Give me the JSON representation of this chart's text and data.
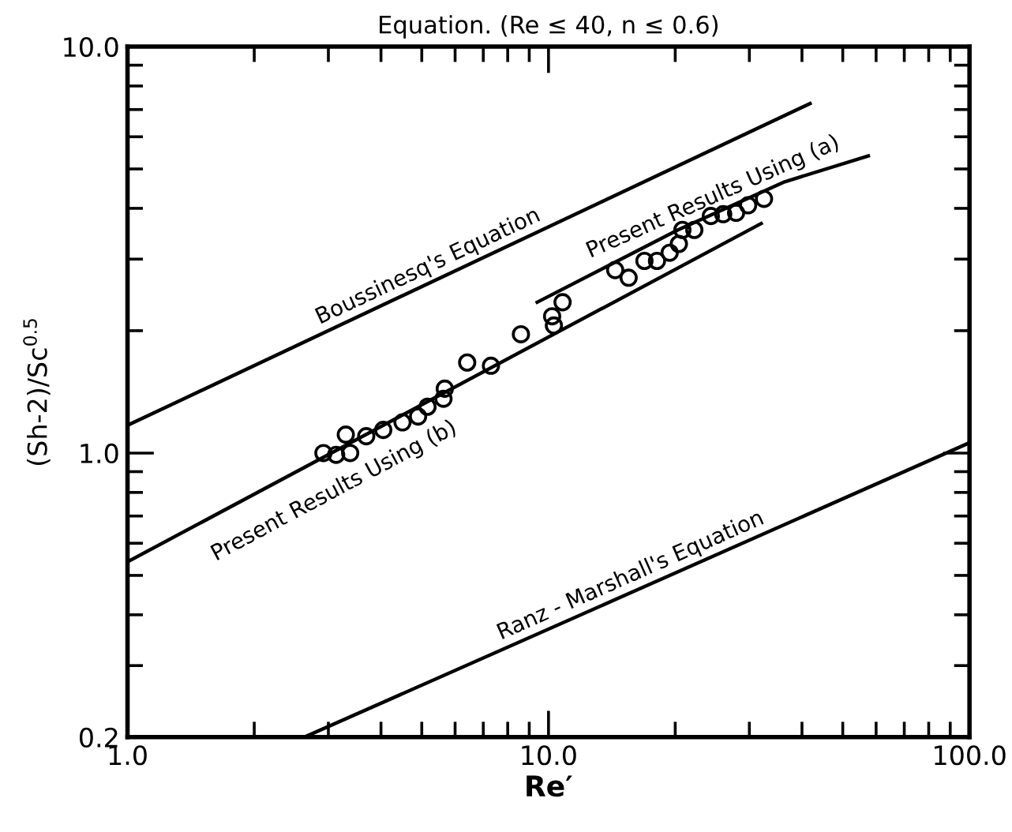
{
  "chart_data": {
    "type": "line",
    "title": "Equation. (Re ≤ 40, n ≤ 0.6)",
    "xlabel": "Re′",
    "ylabel": "(Sh-2)/Sc$^{0.5}$",
    "log": "xy",
    "xlim": [
      1,
      100
    ],
    "ylim": [
      0.2,
      10
    ],
    "xticks": [
      {
        "value": 1,
        "label": "1.0"
      },
      {
        "value": 2,
        "label": null
      },
      {
        "value": 3,
        "label": null
      },
      {
        "value": 4,
        "label": null
      },
      {
        "value": 5,
        "label": null
      },
      {
        "value": 6,
        "label": null
      },
      {
        "value": 7,
        "label": null
      },
      {
        "value": 8,
        "label": null
      },
      {
        "value": 9,
        "label": null
      },
      {
        "value": 10,
        "label": "10.0"
      },
      {
        "value": 20,
        "label": null
      },
      {
        "value": 30,
        "label": null
      },
      {
        "value": 40,
        "label": null
      },
      {
        "value": 50,
        "label": null
      },
      {
        "value": 60,
        "label": null
      },
      {
        "value": 70,
        "label": null
      },
      {
        "value": 80,
        "label": null
      },
      {
        "value": 90,
        "label": null
      },
      {
        "value": 100,
        "label": "100.0"
      }
    ],
    "yticks": [
      {
        "value": 0.2,
        "label": "0.2"
      },
      {
        "value": 0.3,
        "label": null
      },
      {
        "value": 0.4,
        "label": null
      },
      {
        "value": 0.5,
        "label": null
      },
      {
        "value": 0.6,
        "label": null
      },
      {
        "value": 0.7,
        "label": null
      },
      {
        "value": 0.8,
        "label": null
      },
      {
        "value": 0.9,
        "label": null
      },
      {
        "value": 1,
        "label": "1.0"
      },
      {
        "value": 2,
        "label": null
      },
      {
        "value": 3,
        "label": null
      },
      {
        "value": 4,
        "label": null
      },
      {
        "value": 5,
        "label": null
      },
      {
        "value": 6,
        "label": null
      },
      {
        "value": 7,
        "label": null
      },
      {
        "value": 8,
        "label": null
      },
      {
        "value": 9,
        "label": null
      },
      {
        "value": 10,
        "label": "10.0"
      }
    ],
    "series": [
      {
        "name": "Boussinesq's Equation",
        "color": "#000000",
        "marker": "none",
        "x": [
          1,
          41.8
        ],
        "values": [
          1.17,
          7.24
        ]
      },
      {
        "name": "Present Results Using (a)",
        "color": "#000000",
        "marker": "none",
        "x": [
          9.4,
          20.3,
          36.4,
          57.5
        ],
        "values": [
          2.35,
          3.54,
          4.65,
          5.38
        ]
      },
      {
        "name": "Present Results Using (b)",
        "color": "#000000",
        "marker": "none",
        "x": [
          1,
          32
        ],
        "values": [
          0.54,
          3.67
        ]
      },
      {
        "name": "Ranz - Marshall's Equation",
        "color": "#000000",
        "marker": "none",
        "x": [
          2.63,
          100
        ],
        "values": [
          0.2,
          1.06
        ]
      },
      {
        "type": "scatter",
        "color": "#000000",
        "marker": "circle",
        "x": [
          2.92,
          3.13,
          3.3,
          3.38,
          3.69,
          4.05,
          4.5,
          4.9,
          5.16,
          5.63,
          5.67,
          6.41,
          7.3,
          8.6,
          10.2,
          10.3,
          10.8,
          14.4,
          15.5,
          16.9,
          18.1,
          19.4,
          20.4,
          20.8,
          22.2,
          24.3,
          26.0,
          27.9,
          29.8,
          32.5
        ],
        "values": [
          1.0,
          0.99,
          1.11,
          1.0,
          1.1,
          1.14,
          1.19,
          1.23,
          1.3,
          1.36,
          1.44,
          1.67,
          1.64,
          1.96,
          2.17,
          2.06,
          2.35,
          2.82,
          2.7,
          2.97,
          2.97,
          3.11,
          3.27,
          3.54,
          3.54,
          3.83,
          3.87,
          3.9,
          4.07,
          4.22
        ]
      }
    ]
  }
}
